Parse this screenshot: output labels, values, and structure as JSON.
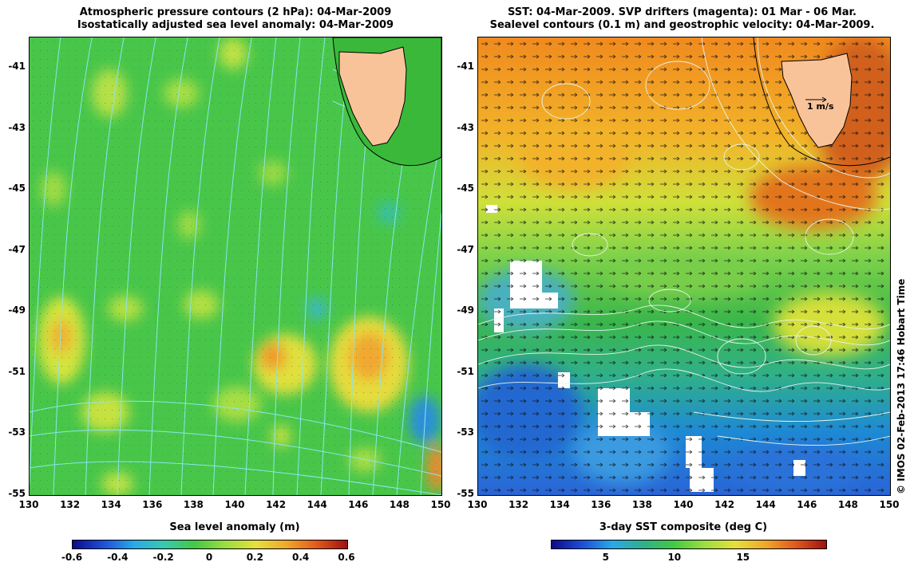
{
  "left_panel": {
    "title_line1": "Atmospheric pressure contours (2 hPa): 04-Mar-2009",
    "title_line2": "Isostatically adjusted sea level anomaly: 04-Mar-2009",
    "y_ticks": [
      "-41",
      "-43",
      "-45",
      "-47",
      "-49",
      "-51",
      "-53",
      "-55"
    ],
    "x_ticks": [
      "130",
      "132",
      "134",
      "136",
      "138",
      "140",
      "142",
      "144",
      "146",
      "148",
      "150"
    ],
    "colorbar_label": "Sea level anomaly (m)",
    "colorbar_ticks": [
      "-0.6",
      "-0.4",
      "-0.2",
      "0",
      "0.2",
      "0.4",
      "0.6"
    ],
    "background_color": "#44c844",
    "contour_color": "#7fe3ea"
  },
  "right_panel": {
    "title_line1": "SST: 04-Mar-2009. SVP drifters (magenta): 01 Mar - 06 Mar.",
    "title_line2": "Sealevel contours (0.1 m) and geostrophic velocity: 04-Mar-2009.",
    "y_ticks": [
      "-41",
      "-43",
      "-45",
      "-47",
      "-49",
      "-51",
      "-53",
      "-55"
    ],
    "x_ticks": [
      "130",
      "132",
      "134",
      "136",
      "138",
      "140",
      "142",
      "144",
      "146",
      "148",
      "150"
    ],
    "colorbar_label": "3-day SST composite (deg C)",
    "colorbar_ticks": [
      "5",
      "10",
      "15"
    ],
    "velocity_scale_label": "1 m/s"
  },
  "credit": "© IMOS 02-Feb-2013 17:46 Hobart Time",
  "colors": {
    "land": "#f9c39a",
    "coast": "#000000",
    "sst_warm": "#e8831e",
    "sst_mid": "#36b04b",
    "sst_cold": "#1e6fd6"
  }
}
